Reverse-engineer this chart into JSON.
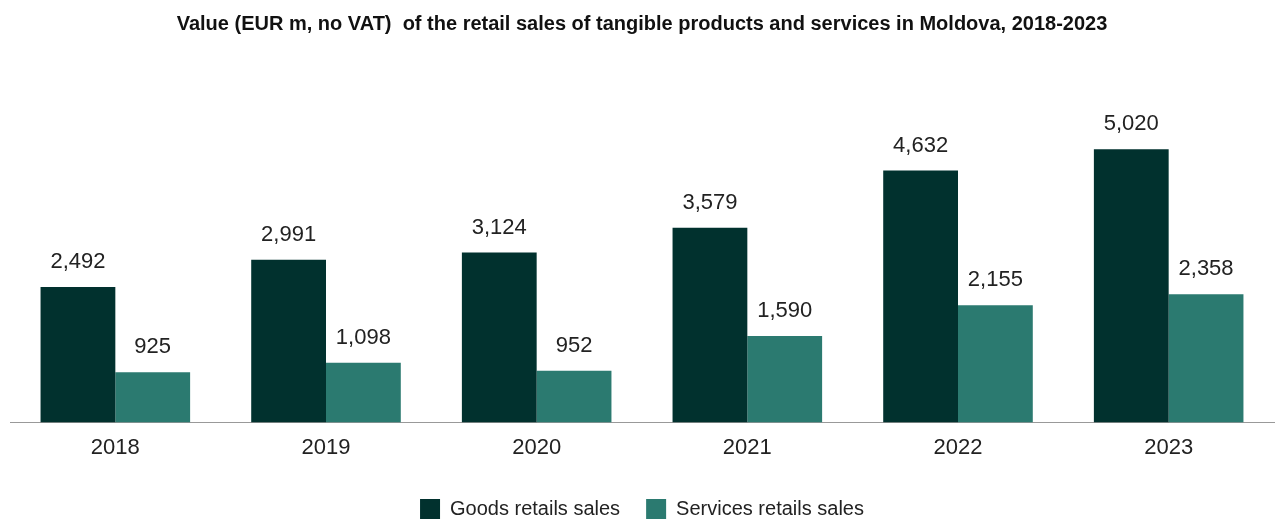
{
  "chart_data": {
    "type": "bar",
    "title": "Value (EUR m, no VAT)  of the retail sales of tangible products and services in Moldova, 2018-2023",
    "categories": [
      "2018",
      "2019",
      "2020",
      "2021",
      "2022",
      "2023"
    ],
    "series": [
      {
        "name": "Goods retails sales",
        "color": "#01312e",
        "values": [
          2492,
          2991,
          3124,
          3579,
          4632,
          5020
        ],
        "value_labels": [
          "2,492",
          "2,991",
          "3,124",
          "3,579",
          "4,632",
          "5,020"
        ]
      },
      {
        "name": "Services retails sales",
        "color": "#2b7a70",
        "values": [
          925,
          1098,
          952,
          1590,
          2155,
          2358
        ],
        "value_labels": [
          "925",
          "1,098",
          "952",
          "1,590",
          "2,155",
          "2,358"
        ]
      }
    ],
    "legend": "bottom"
  }
}
